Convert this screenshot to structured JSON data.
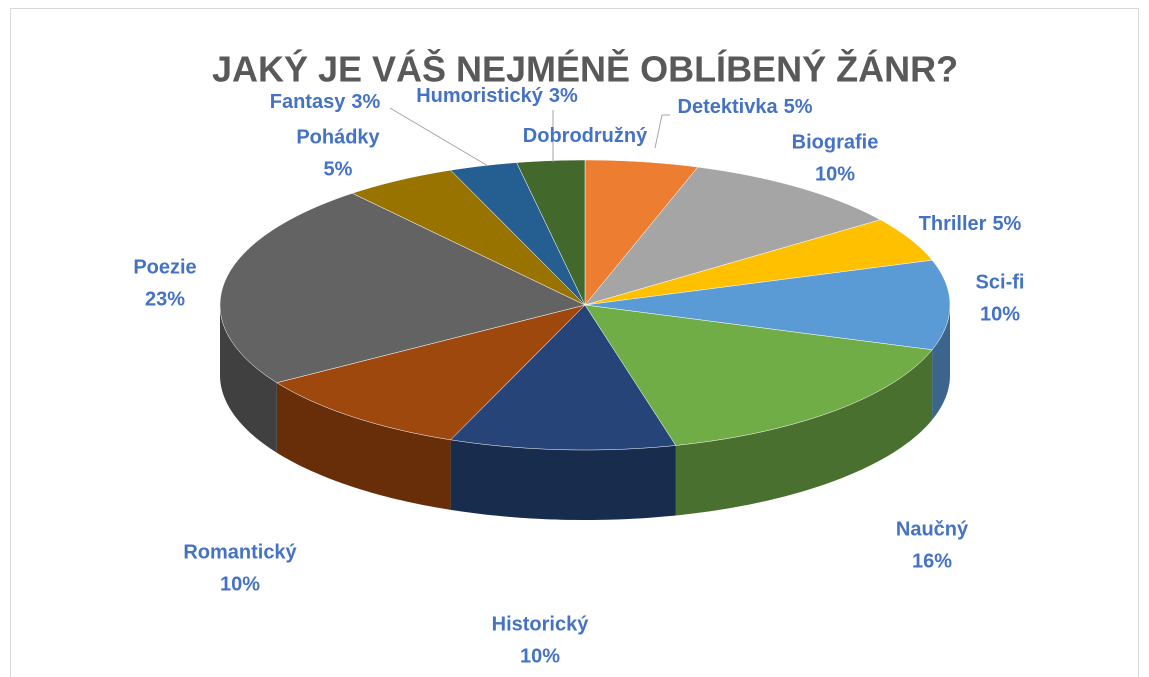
{
  "chart_data": {
    "type": "pie3d",
    "title": "JAKÝ JE VÁŠ NEJMÉNĚ OBLÍBENÝ ŽÁNR?",
    "categories": [
      "Detektivka",
      "Biografie",
      "Thriller",
      "Sci-fi",
      "Naučný",
      "Historický",
      "Romantický",
      "Poezie",
      "Pohádky",
      "Fantasy",
      "Humoristický",
      "Dobrodružný"
    ],
    "values": [
      5,
      10,
      5,
      10,
      16,
      10,
      10,
      23,
      5,
      3,
      3,
      0
    ],
    "value_labels": [
      "5%",
      "10%",
      "5%",
      "10%",
      "16%",
      "10%",
      "10%",
      "23%",
      "5%",
      "3%",
      "3%",
      null
    ],
    "colors": [
      "#ed7d31",
      "#a5a5a5",
      "#ffc000",
      "#5b9bd5",
      "#70ad47",
      "#264478",
      "#9e480e",
      "#636363",
      "#997300",
      "#255e91",
      "#43682b",
      "#698ed0"
    ]
  }
}
